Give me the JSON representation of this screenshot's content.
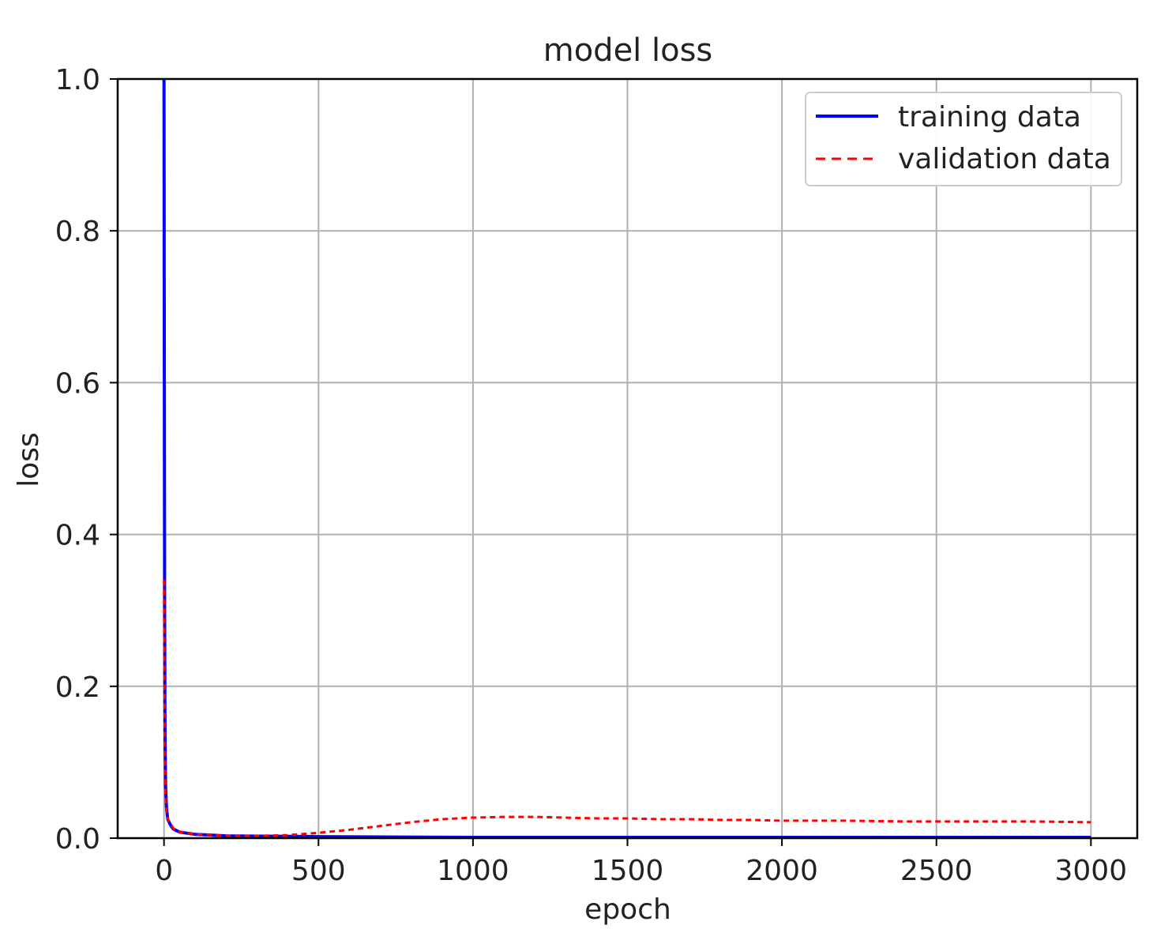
{
  "chart_data": {
    "type": "line",
    "title": "model loss",
    "xlabel": "epoch",
    "ylabel": "loss",
    "xlim": [
      -150,
      3150
    ],
    "ylim": [
      0.0,
      1.0
    ],
    "xticks": [
      0,
      500,
      1000,
      1500,
      2000,
      2500,
      3000
    ],
    "xtick_labels": [
      "0",
      "500",
      "1000",
      "1500",
      "2000",
      "2500",
      "3000"
    ],
    "yticks": [
      0.0,
      0.2,
      0.4,
      0.6,
      0.8,
      1.0
    ],
    "ytick_labels": [
      "0.0",
      "0.2",
      "0.4",
      "0.6",
      "0.8",
      "1.0"
    ],
    "grid": true,
    "legend_position": "top-right",
    "series": [
      {
        "name": "training data",
        "color": "#0000ff",
        "style": "solid",
        "x": [
          0,
          1,
          2,
          3,
          5,
          8,
          12,
          20,
          30,
          50,
          100,
          200,
          500,
          1000,
          1500,
          2000,
          2500,
          3000
        ],
        "y": [
          1.0,
          0.6,
          0.3,
          0.15,
          0.07,
          0.04,
          0.025,
          0.018,
          0.012,
          0.008,
          0.005,
          0.003,
          0.002,
          0.001,
          0.001,
          0.001,
          0.001,
          0.001
        ]
      },
      {
        "name": "validation data",
        "color": "#ff0000",
        "style": "dashed",
        "x": [
          0,
          1,
          2,
          3,
          5,
          8,
          12,
          20,
          30,
          50,
          100,
          200,
          300,
          400,
          500,
          600,
          700,
          800,
          900,
          1000,
          1100,
          1200,
          1300,
          1400,
          1500,
          1600,
          1700,
          1800,
          1900,
          2000,
          2200,
          2400,
          2600,
          2800,
          3000
        ],
        "y": [
          0.34,
          0.25,
          0.17,
          0.1,
          0.06,
          0.035,
          0.025,
          0.02,
          0.013,
          0.008,
          0.005,
          0.003,
          0.003,
          0.004,
          0.007,
          0.011,
          0.016,
          0.021,
          0.025,
          0.027,
          0.028,
          0.028,
          0.027,
          0.026,
          0.026,
          0.025,
          0.025,
          0.024,
          0.024,
          0.023,
          0.023,
          0.022,
          0.022,
          0.022,
          0.021
        ]
      }
    ]
  }
}
